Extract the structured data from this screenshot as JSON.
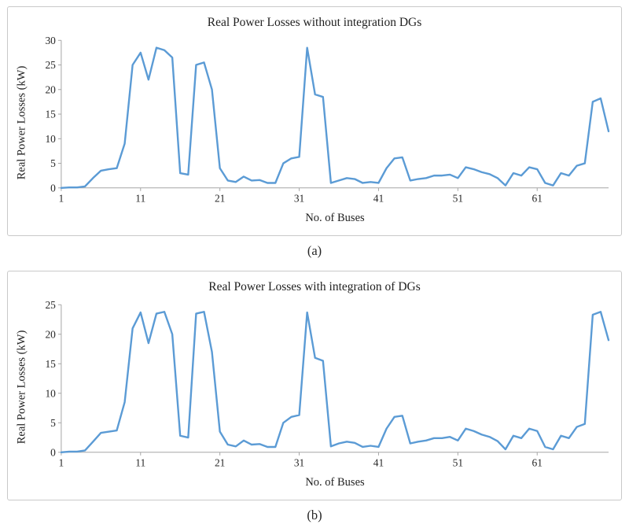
{
  "chart_data": [
    {
      "id": "a",
      "type": "line",
      "title": "Real Power Losses without integration DGs",
      "xlabel": "No. of Buses",
      "ylabel": "Real Power Losses (kW)",
      "caption": "(a)",
      "line_color": "#5B9BD5",
      "grid": false,
      "legend": "none",
      "x_start": 1,
      "x_ticks": [
        1,
        11,
        21,
        31,
        41,
        51,
        61
      ],
      "ylim": [
        0,
        30
      ],
      "y_ticks": [
        0,
        5,
        10,
        15,
        20,
        25,
        30
      ],
      "values": [
        0,
        0.1,
        0.1,
        0.3,
        2,
        3.5,
        3.8,
        4,
        9,
        25,
        27.5,
        22,
        28.5,
        28,
        26.5,
        3,
        2.7,
        25,
        25.5,
        20,
        4,
        1.5,
        1.2,
        2.3,
        1.5,
        1.6,
        1,
        1,
        5,
        6,
        6.3,
        28.5,
        19,
        18.5,
        1,
        1.5,
        2,
        1.8,
        1,
        1.2,
        1,
        4,
        6,
        6.2,
        1.5,
        1.8,
        2,
        2.5,
        2.5,
        2.7,
        2,
        4.2,
        3.8,
        3.2,
        2.8,
        2,
        0.5,
        3,
        2.5,
        4.2,
        3.8,
        1,
        0.5,
        3,
        2.5,
        4.5,
        5,
        17.5,
        18.2,
        11.5
      ]
    },
    {
      "id": "b",
      "type": "line",
      "title": "Real Power Losses with integration of DGs",
      "xlabel": "No. of Buses",
      "ylabel": "Real Power Losses (kW)",
      "caption": "(b)",
      "line_color": "#5B9BD5",
      "grid": false,
      "legend": "none",
      "x_start": 1,
      "x_ticks": [
        1,
        11,
        21,
        31,
        41,
        51,
        61
      ],
      "ylim": [
        0,
        25
      ],
      "y_ticks": [
        0,
        5,
        10,
        15,
        20,
        25
      ],
      "values": [
        0,
        0.1,
        0.1,
        0.3,
        1.8,
        3.3,
        3.5,
        3.7,
        8.5,
        21,
        23.7,
        18.5,
        23.5,
        23.8,
        20,
        2.8,
        2.5,
        23.5,
        23.8,
        17,
        3.5,
        1.3,
        1,
        2,
        1.3,
        1.4,
        0.9,
        0.9,
        5,
        6,
        6.3,
        23.7,
        16,
        15.5,
        1,
        1.5,
        1.8,
        1.6,
        0.9,
        1.1,
        0.9,
        4,
        6,
        6.2,
        1.5,
        1.8,
        2,
        2.4,
        2.4,
        2.6,
        2,
        4,
        3.6,
        3,
        2.6,
        1.9,
        0.5,
        2.8,
        2.4,
        4,
        3.6,
        0.9,
        0.5,
        2.8,
        2.4,
        4.3,
        4.8,
        23.3,
        23.8,
        19
      ]
    }
  ]
}
